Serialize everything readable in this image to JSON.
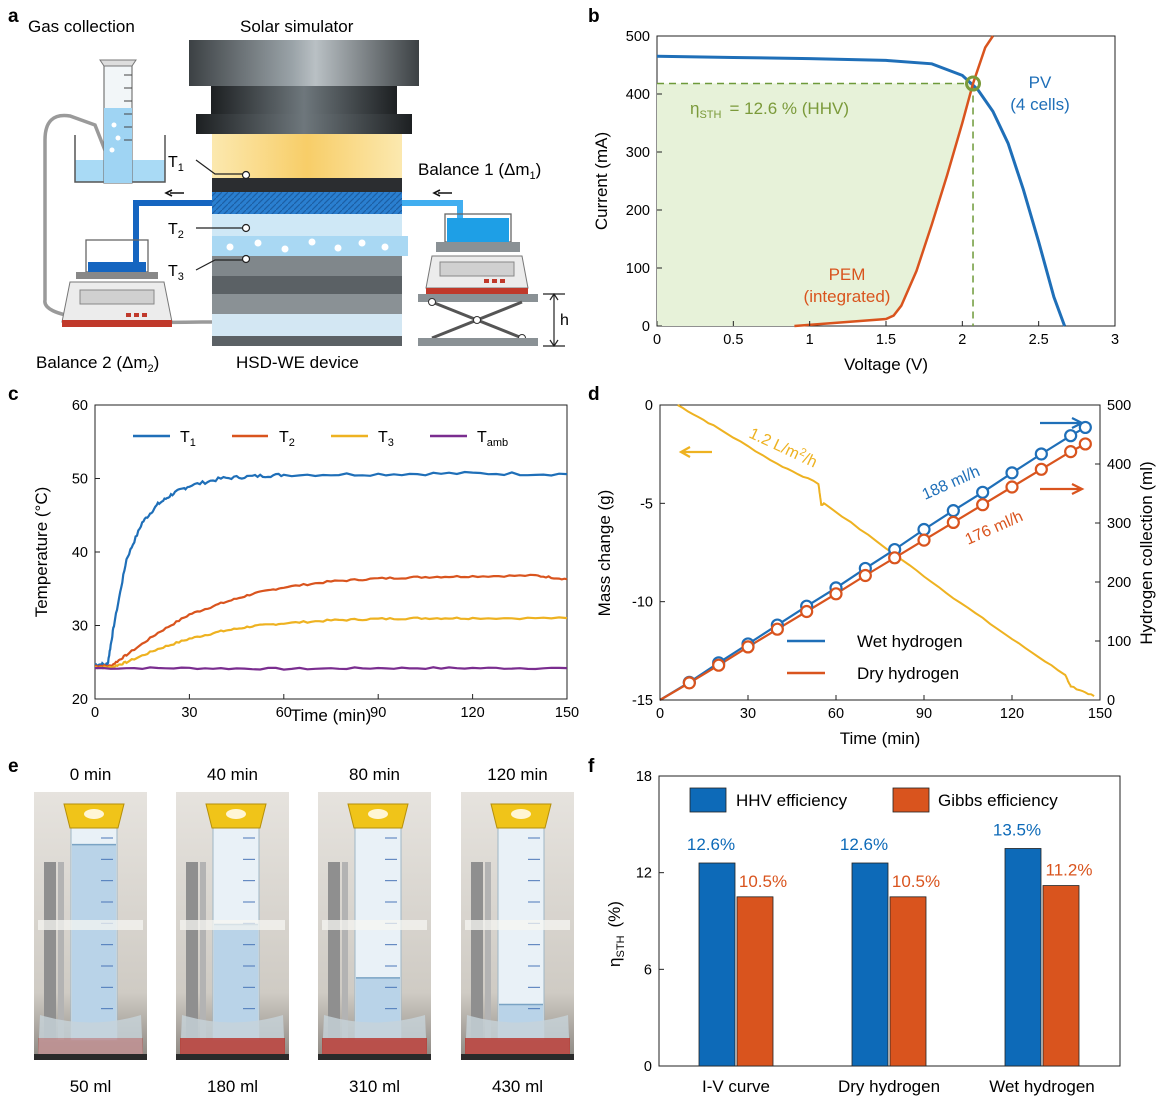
{
  "colors": {
    "blue": "#1f6fb8",
    "orange": "#d9541e",
    "yellow": "#eeb221",
    "purple": "#7a2d8f",
    "olive": "#7b9a3a",
    "green_fill": "#e7f2d9",
    "bar_blue": "#0d6ab8",
    "bar_orange": "#d9541e"
  },
  "panel_letters": {
    "a": "a",
    "b": "b",
    "c": "c",
    "d": "d",
    "e": "e",
    "f": "f"
  },
  "panel_a": {
    "gas_collection": "Gas collection",
    "solar_simulator": "Solar simulator",
    "t1": "T",
    "t1_sub": "1",
    "t2": "T",
    "t2_sub": "2",
    "t3": "T",
    "t3_sub": "3",
    "balance1": "Balance 1 (Δm",
    "balance1_sub": "1",
    "balance1_end": ")",
    "balance2": "Balance 2 (Δm",
    "balance2_sub": "2",
    "balance2_end": ")",
    "device": "HSD-WE device",
    "h": "h"
  },
  "chart_data": [
    {
      "id": "b",
      "type": "line",
      "xlabel": "Voltage (V)",
      "ylabel": "Current (mA)",
      "xlim": [
        0,
        3
      ],
      "ylim": [
        0,
        500
      ],
      "xticks": [
        "0",
        "0.5",
        "1",
        "1.5",
        "2",
        "2.5",
        "3"
      ],
      "yticks": [
        "0",
        "100",
        "200",
        "300",
        "400",
        "500"
      ],
      "series": [
        {
          "name": "PV",
          "name2": "(4 cells)",
          "color": "#1f6fb8",
          "x": [
            0,
            0.5,
            1.0,
            1.5,
            1.8,
            2.0,
            2.1,
            2.2,
            2.3,
            2.4,
            2.5,
            2.6,
            2.67
          ],
          "y": [
            465,
            463,
            461,
            458,
            452,
            432,
            408,
            370,
            315,
            235,
            145,
            50,
            0
          ]
        },
        {
          "name": "PEM",
          "name2": "(integrated)",
          "color": "#d9541e",
          "x": [
            0.9,
            1.2,
            1.5,
            1.55,
            1.6,
            1.7,
            1.8,
            1.9,
            2.0,
            2.07,
            2.15,
            2.2
          ],
          "y": [
            0,
            6,
            12,
            18,
            35,
            95,
            175,
            260,
            350,
            418,
            480,
            500
          ]
        }
      ],
      "operating_point": {
        "x": 2.07,
        "y": 418
      },
      "annotation": {
        "eta": "η",
        "eta_sub": "STH",
        "text": "= 12.6 % (HHV)"
      }
    },
    {
      "id": "c",
      "type": "line",
      "xlabel": "Time (min)",
      "ylabel": "Temperature (°C)",
      "xlim": [
        0,
        150
      ],
      "ylim": [
        20,
        60
      ],
      "xticks": [
        "0",
        "30",
        "60",
        "90",
        "120",
        "150"
      ],
      "yticks": [
        "20",
        "30",
        "40",
        "50",
        "60"
      ],
      "legend": [
        {
          "name": "T",
          "sub": "1"
        },
        {
          "name": "T",
          "sub": "2"
        },
        {
          "name": "T",
          "sub": "3"
        },
        {
          "name": "T",
          "sub": "amb"
        }
      ],
      "series": [
        {
          "name": "T1",
          "color": "#1f6fb8",
          "x": [
            0,
            4,
            6,
            10,
            15,
            20,
            25,
            30,
            40,
            50,
            60,
            90,
            120,
            150
          ],
          "y": [
            24.7,
            24.7,
            30,
            39,
            44,
            46.5,
            48,
            49,
            50,
            50.3,
            50.5,
            50.6,
            50.7,
            50.6
          ]
        },
        {
          "name": "T2",
          "color": "#d9541e",
          "x": [
            0,
            5,
            10,
            20,
            30,
            40,
            50,
            60,
            75,
            90,
            105,
            120,
            140,
            150
          ],
          "y": [
            24.5,
            24.5,
            26,
            29,
            31.5,
            33,
            34.3,
            35.2,
            36,
            36.4,
            36.6,
            36.7,
            36.8,
            36.3
          ]
        },
        {
          "name": "T3",
          "color": "#eeb221",
          "x": [
            0,
            5,
            10,
            20,
            30,
            40,
            50,
            60,
            75,
            90,
            105,
            120,
            150
          ],
          "y": [
            24.3,
            24.3,
            25,
            26.8,
            28.2,
            29.2,
            29.9,
            30.3,
            30.7,
            30.9,
            31.0,
            31.0,
            31.0
          ]
        },
        {
          "name": "Tamb",
          "color": "#7a2d8f",
          "x": [
            0,
            30,
            60,
            90,
            120,
            150
          ],
          "y": [
            24.2,
            24.2,
            24.1,
            24.2,
            24.2,
            24.2
          ]
        }
      ]
    },
    {
      "id": "d",
      "type": "line",
      "xlabel": "Time (min)",
      "ylabel": "Mass change (g)",
      "ylabel_right": "Hydrogen collection (ml)",
      "xlim": [
        0,
        150
      ],
      "ylim": [
        -15,
        0
      ],
      "ylim_right": [
        0,
        500
      ],
      "xticks": [
        "0",
        "30",
        "60",
        "90",
        "120",
        "150"
      ],
      "yticks": [
        "0",
        "-5",
        "-10",
        "-15"
      ],
      "yticks_right": [
        "0",
        "100",
        "200",
        "300",
        "400",
        "500"
      ],
      "rate_mass": "1.2 L/m",
      "rate_mass_sup": "2",
      "rate_mass_end": "/h",
      "rate_wet": "188 ml/h",
      "rate_dry": "176 ml/h",
      "legend": [
        "Wet hydrogen",
        "Dry hydrogen"
      ],
      "mass_series": {
        "x": [
          6,
          20,
          40,
          54,
          55,
          56,
          80,
          100,
          120,
          138,
          139,
          140,
          148
        ],
        "y": [
          0,
          -1.2,
          -3,
          -4.0,
          -5.1,
          -5.0,
          -7.6,
          -9.8,
          -11.9,
          -13.7,
          -14.0,
          -14.3,
          -14.8
        ]
      },
      "wet": {
        "x": [
          10,
          20,
          30,
          40,
          50,
          60,
          70,
          80,
          90,
          100,
          110,
          120,
          130,
          140,
          145
        ],
        "y": [
          30,
          63,
          95,
          127,
          159,
          190,
          223,
          255,
          289,
          321,
          352,
          385,
          417,
          448,
          462
        ]
      },
      "dry": {
        "x": [
          10,
          20,
          30,
          40,
          50,
          60,
          70,
          80,
          90,
          100,
          110,
          120,
          130,
          140,
          145
        ],
        "y": [
          29,
          59,
          90,
          120,
          150,
          180,
          211,
          241,
          271,
          301,
          331,
          361,
          391,
          421,
          434
        ]
      }
    },
    {
      "id": "f",
      "type": "bar",
      "ylabel": "η",
      "ylabel_sub": "STH",
      "ylabel_unit": "(%)",
      "ylim": [
        0,
        18
      ],
      "yticks": [
        "0",
        "6",
        "12",
        "18"
      ],
      "categories": [
        "I-V curve",
        "Dry hydrogen",
        "Wet hydrogen"
      ],
      "series": [
        {
          "name": "HHV efficiency",
          "color": "#0d6ab8",
          "values": [
            12.6,
            12.6,
            13.5
          ],
          "labels": [
            "12.6%",
            "12.6%",
            "13.5%"
          ]
        },
        {
          "name": "Gibbs efficiency",
          "color": "#d9541e",
          "values": [
            10.5,
            10.5,
            11.2
          ],
          "labels": [
            "10.5%",
            "10.5%",
            "11.2%"
          ]
        }
      ]
    }
  ],
  "panel_e": {
    "photos": [
      {
        "time": "0 min",
        "volume": "50 ml",
        "level": 0.88
      },
      {
        "time": "40 min",
        "volume": "180 ml",
        "level": 0.52
      },
      {
        "time": "80 min",
        "volume": "310 ml",
        "level": 0.28
      },
      {
        "time": "120 min",
        "volume": "430 ml",
        "level": 0.16
      }
    ]
  }
}
